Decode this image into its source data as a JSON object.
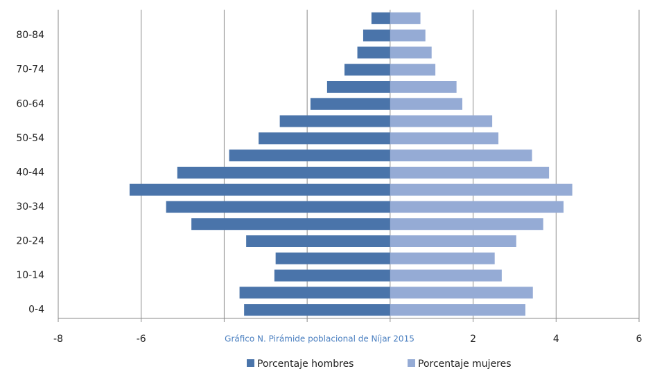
{
  "chart_data": {
    "type": "bar",
    "title": "Gráfico N. Pirámide poblacional de Níjar 2015",
    "categories": [
      "0-4",
      null,
      "10-14",
      null,
      "20-24",
      null,
      "30-34",
      null,
      "40-44",
      null,
      "50-54",
      null,
      "60-64",
      null,
      "70-74",
      null,
      "80-84",
      null
    ],
    "series": [
      {
        "name": "Porcentaje hombres",
        "color": "#4a74aa",
        "values": [
          -3.52,
          -3.63,
          -2.79,
          -2.76,
          -3.47,
          -4.79,
          -5.4,
          -6.28,
          -5.13,
          -3.88,
          -3.17,
          -2.66,
          -1.92,
          -1.52,
          -1.1,
          -0.79,
          -0.65,
          -0.45
        ]
      },
      {
        "name": "Porcentaje mujeres",
        "color": "#95abd5",
        "values": [
          3.26,
          3.44,
          2.69,
          2.52,
          3.04,
          3.69,
          4.18,
          4.39,
          3.83,
          3.42,
          2.61,
          2.46,
          1.74,
          1.6,
          1.09,
          1.0,
          0.85,
          0.73
        ]
      }
    ],
    "xlim": [
      -8,
      6
    ],
    "xticks": [
      -8,
      -6,
      -4,
      -2,
      0,
      2,
      4,
      6
    ],
    "grid": true,
    "legend": "bottom"
  }
}
